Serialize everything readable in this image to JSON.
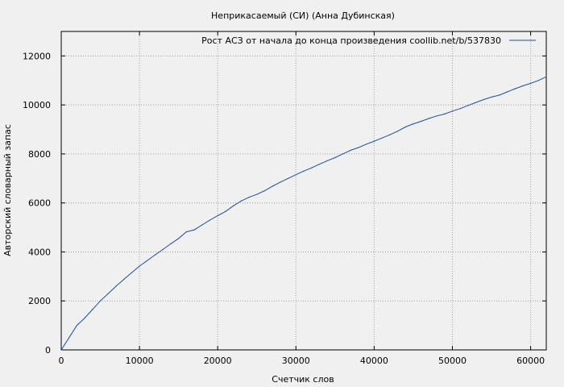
{
  "chart_data": {
    "type": "line",
    "title": "Неприкасаемый (СИ) (Анна Дубинская)",
    "xlabel": "Счетчик слов",
    "ylabel": "Авторский словарный запас",
    "xlim": [
      0,
      62000
    ],
    "ylim": [
      0,
      13000
    ],
    "x_ticks": [
      0,
      10000,
      20000,
      30000,
      40000,
      50000,
      60000
    ],
    "y_ticks": [
      0,
      2000,
      4000,
      6000,
      8000,
      10000,
      12000
    ],
    "x_tick_labels": [
      "0",
      "10000",
      "20000",
      "30000",
      "40000",
      "50000",
      "60000"
    ],
    "y_tick_labels": [
      "0",
      "2000",
      "4000",
      "6000",
      "8000",
      "10000",
      "12000"
    ],
    "grid": true,
    "legend_position": "top-right",
    "series": [
      {
        "name": "Рост АСЗ от начала до конца произведения coollib.net/b/537830",
        "color": "#1f4e9c",
        "x": [
          0,
          1000,
          2000,
          3000,
          4000,
          5000,
          6000,
          7000,
          8000,
          9000,
          10000,
          11000,
          12000,
          13000,
          14000,
          15000,
          16000,
          17000,
          18000,
          19000,
          20000,
          21000,
          22000,
          23000,
          24000,
          25000,
          26000,
          27000,
          28000,
          29000,
          30000,
          31000,
          32000,
          33000,
          34000,
          35000,
          36000,
          37000,
          38000,
          39000,
          40000,
          41000,
          42000,
          43000,
          44000,
          45000,
          46000,
          47000,
          48000,
          49000,
          50000,
          51000,
          52000,
          53000,
          54000,
          55000,
          56000,
          57000,
          58000,
          59000,
          60000,
          61000,
          62000
        ],
        "y": [
          0,
          500,
          1000,
          1300,
          1650,
          2000,
          2300,
          2600,
          2880,
          3150,
          3420,
          3650,
          3880,
          4100,
          4330,
          4550,
          4820,
          4900,
          5100,
          5300,
          5480,
          5650,
          5880,
          6080,
          6230,
          6350,
          6500,
          6680,
          6850,
          7000,
          7150,
          7300,
          7430,
          7580,
          7720,
          7850,
          8000,
          8150,
          8260,
          8400,
          8520,
          8650,
          8780,
          8930,
          9100,
          9230,
          9330,
          9450,
          9550,
          9630,
          9750,
          9850,
          9980,
          10100,
          10220,
          10320,
          10400,
          10530,
          10660,
          10780,
          10880,
          11000,
          11150
        ]
      }
    ]
  }
}
